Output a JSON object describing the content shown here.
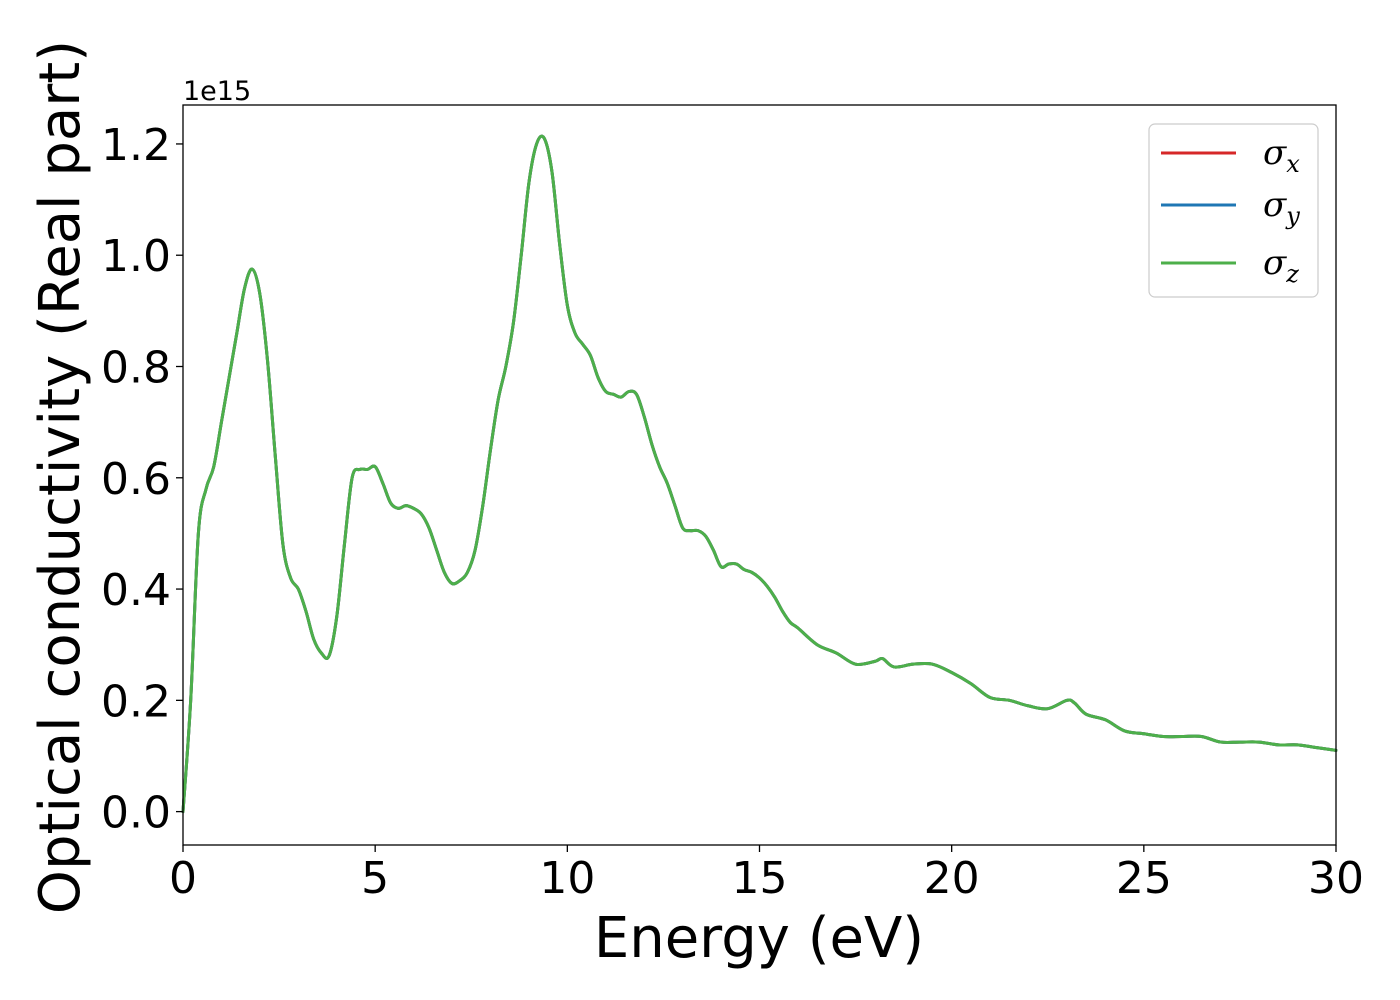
{
  "chart_data": {
    "type": "line",
    "xlabel": "Energy (eV)",
    "ylabel": "Optical conductivity (Real part)",
    "y_offset_label": "1e15",
    "xlim": [
      0,
      30
    ],
    "ylim": [
      -0.06,
      1.27
    ],
    "x_ticks": [
      0,
      5,
      10,
      15,
      20,
      25,
      30
    ],
    "x_tick_labels": [
      "0",
      "5",
      "10",
      "15",
      "20",
      "25",
      "30"
    ],
    "y_ticks": [
      0.0,
      0.2,
      0.4,
      0.6,
      0.8,
      1.0,
      1.2
    ],
    "y_tick_labels": [
      "0.0",
      "0.2",
      "0.4",
      "0.6",
      "0.8",
      "1.0",
      "1.2"
    ],
    "grid": false,
    "legend_position": "top-right",
    "series": [
      {
        "name": "σx",
        "symbol": "σ",
        "subscript": "x",
        "color": "#d62728"
      },
      {
        "name": "σy",
        "symbol": "σ",
        "subscript": "y",
        "color": "#1f77b4"
      },
      {
        "name": "σz",
        "symbol": "σ",
        "subscript": "z",
        "color": "#4daf4a"
      }
    ],
    "x": [
      0,
      0.2,
      0.4,
      0.6,
      0.8,
      1.0,
      1.2,
      1.4,
      1.6,
      1.8,
      2.0,
      2.2,
      2.4,
      2.6,
      2.8,
      3.0,
      3.2,
      3.4,
      3.6,
      3.8,
      4.0,
      4.2,
      4.4,
      4.6,
      4.8,
      5.0,
      5.2,
      5.4,
      5.6,
      5.8,
      6.0,
      6.2,
      6.4,
      6.6,
      6.8,
      7.0,
      7.2,
      7.4,
      7.6,
      7.8,
      8.0,
      8.2,
      8.4,
      8.6,
      8.8,
      9.0,
      9.2,
      9.4,
      9.6,
      9.8,
      10.0,
      10.2,
      10.4,
      10.6,
      10.8,
      11.0,
      11.2,
      11.4,
      11.6,
      11.8,
      12.0,
      12.2,
      12.4,
      12.6,
      12.8,
      13.0,
      13.2,
      13.4,
      13.6,
      13.8,
      14.0,
      14.2,
      14.4,
      14.6,
      14.8,
      15.0,
      15.2,
      15.4,
      15.6,
      15.8,
      16.0,
      16.5,
      17.0,
      17.5,
      18.0,
      18.2,
      18.5,
      19.0,
      19.5,
      20.0,
      20.5,
      21.0,
      21.5,
      22.0,
      22.5,
      23.0,
      23.2,
      23.5,
      24.0,
      24.5,
      25.0,
      25.5,
      26.0,
      26.5,
      27.0,
      27.5,
      28.0,
      28.5,
      29.0,
      29.5,
      30.0
    ],
    "y": [
      0.0,
      0.2,
      0.5,
      0.58,
      0.62,
      0.7,
      0.78,
      0.86,
      0.94,
      0.975,
      0.93,
      0.81,
      0.64,
      0.48,
      0.42,
      0.4,
      0.36,
      0.31,
      0.285,
      0.28,
      0.35,
      0.48,
      0.6,
      0.615,
      0.615,
      0.62,
      0.59,
      0.555,
      0.545,
      0.55,
      0.545,
      0.535,
      0.51,
      0.47,
      0.43,
      0.41,
      0.415,
      0.43,
      0.47,
      0.55,
      0.65,
      0.74,
      0.8,
      0.88,
      1.0,
      1.13,
      1.2,
      1.21,
      1.15,
      1.02,
      0.91,
      0.86,
      0.84,
      0.82,
      0.78,
      0.755,
      0.75,
      0.745,
      0.755,
      0.75,
      0.71,
      0.66,
      0.62,
      0.59,
      0.55,
      0.51,
      0.505,
      0.505,
      0.495,
      0.47,
      0.44,
      0.445,
      0.445,
      0.435,
      0.43,
      0.42,
      0.405,
      0.385,
      0.36,
      0.34,
      0.33,
      0.3,
      0.285,
      0.265,
      0.27,
      0.275,
      0.26,
      0.265,
      0.265,
      0.25,
      0.23,
      0.205,
      0.2,
      0.19,
      0.185,
      0.2,
      0.195,
      0.175,
      0.165,
      0.145,
      0.14,
      0.135,
      0.135,
      0.135,
      0.125,
      0.125,
      0.125,
      0.12,
      0.12,
      0.115,
      0.11
    ]
  }
}
